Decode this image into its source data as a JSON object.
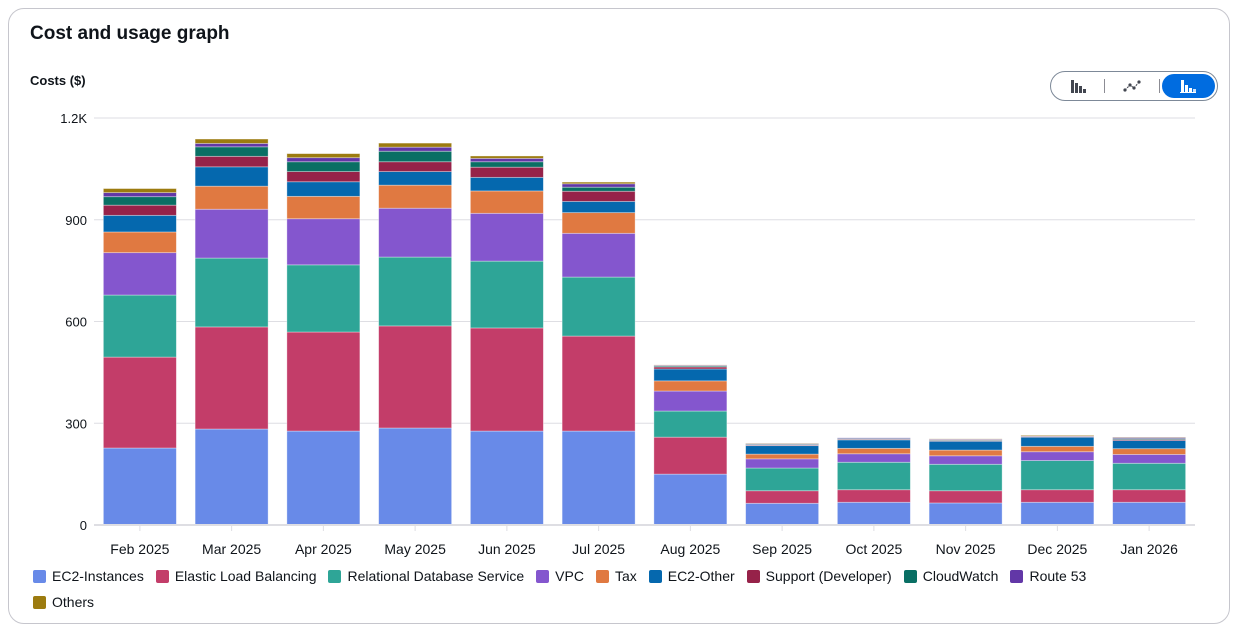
{
  "title": "Cost and usage graph",
  "view_toggle": {
    "options": [
      "bar-chart-icon",
      "line-chart-icon",
      "stacked-bar-chart-icon"
    ],
    "selected": "stacked-bar-chart-icon"
  },
  "chart_data": {
    "type": "bar",
    "stacked": true,
    "ylabel": "Costs ($)",
    "ylim": [
      0,
      1200
    ],
    "yticks": [
      0,
      300,
      600,
      900,
      1200
    ],
    "ytick_labels": [
      "0",
      "300",
      "600",
      "900",
      "1.2K"
    ],
    "grid": true,
    "legend_placement": "bottom",
    "categories": [
      "Feb 2025",
      "Mar 2025",
      "Apr 2025",
      "May 2025",
      "Jun 2025",
      "Jul 2025",
      "Aug 2025",
      "Sep 2025",
      "Oct 2025",
      "Nov 2025",
      "Dec 2025",
      "Jan 2026"
    ],
    "series": [
      {
        "name": "EC2-Instances",
        "color": "#688ae8",
        "values": [
          227,
          283,
          277,
          286,
          277,
          277,
          150,
          64,
          67,
          65,
          67,
          67
        ]
      },
      {
        "name": "Elastic Load Balancing",
        "color": "#c33d69",
        "values": [
          268,
          301,
          292,
          301,
          304,
          280,
          109,
          37,
          37,
          36,
          37,
          37
        ]
      },
      {
        "name": "Relational Database Service",
        "color": "#2ea597",
        "values": [
          183,
          203,
          198,
          203,
          197,
          174,
          77,
          67,
          81,
          78,
          86,
          78
        ]
      },
      {
        "name": "VPC",
        "color": "#8456ce",
        "values": [
          125,
          144,
          136,
          144,
          141,
          129,
          59,
          27,
          25,
          25,
          26,
          26
        ]
      },
      {
        "name": "Tax",
        "color": "#e07941",
        "values": [
          61,
          68,
          66,
          68,
          66,
          61,
          30,
          14,
          16,
          17,
          16,
          17
        ]
      },
      {
        "name": "EC2-Other",
        "color": "#0568ae",
        "values": [
          49,
          57,
          43,
          40,
          40,
          33,
          35,
          25,
          25,
          26,
          27,
          24
        ]
      },
      {
        "name": "Support (Developer)",
        "color": "#962249",
        "values": [
          30,
          31,
          30,
          29,
          30,
          30,
          6,
          2,
          2,
          2,
          2,
          3
        ]
      },
      {
        "name": "CloudWatch",
        "color": "#096f64",
        "values": [
          25,
          28,
          29,
          31,
          16,
          12,
          3,
          2,
          2,
          2,
          1,
          3
        ]
      },
      {
        "name": "Route 53",
        "color": "#6237a7",
        "values": [
          12,
          10,
          12,
          12,
          10,
          10,
          2,
          2,
          2,
          2,
          1,
          3
        ]
      },
      {
        "name": "Others",
        "color": "#9c7b0f",
        "values": [
          12,
          13,
          12,
          12,
          7,
          5,
          1,
          1,
          0,
          1,
          2,
          1
        ]
      }
    ]
  }
}
